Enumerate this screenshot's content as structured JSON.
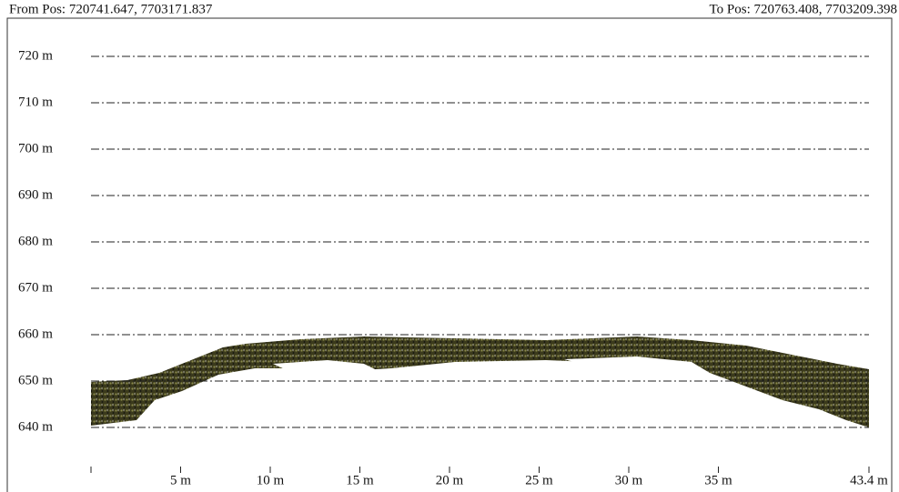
{
  "chart_data": {
    "type": "profile",
    "from_label": "From Pos: 720741.647, 7703171.837",
    "to_label": "To Pos: 720763.408, 7703209.398",
    "xlim": [
      0,
      43.4
    ],
    "xticks": [
      {
        "value": 5,
        "label": "5 m"
      },
      {
        "value": 10,
        "label": "10 m"
      },
      {
        "value": 15,
        "label": "15 m"
      },
      {
        "value": 20,
        "label": "20 m"
      },
      {
        "value": 25,
        "label": "25 m"
      },
      {
        "value": 30,
        "label": "30 m"
      },
      {
        "value": 35,
        "label": "35 m"
      },
      {
        "value": 43.4,
        "label": "43.4 m"
      }
    ],
    "ylim": [
      640,
      720
    ],
    "yticks": [
      {
        "value": 640,
        "label": "640 m"
      },
      {
        "value": 650,
        "label": "650 m"
      },
      {
        "value": 660,
        "label": "660 m"
      },
      {
        "value": 670,
        "label": "670 m"
      },
      {
        "value": 680,
        "label": "680 m"
      },
      {
        "value": 690,
        "label": "690 m"
      },
      {
        "value": 700,
        "label": "700 m"
      },
      {
        "value": 710,
        "label": "710 m"
      },
      {
        "value": 720,
        "label": "720 m"
      }
    ],
    "grid": true
  }
}
